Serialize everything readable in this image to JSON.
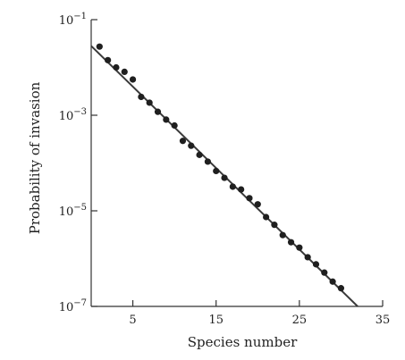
{
  "chart_data": {
    "type": "scatter",
    "title": "",
    "xlabel": "Species number",
    "ylabel": "Probability of invasion",
    "xlim": [
      0,
      35
    ],
    "ylim": [
      1e-07,
      0.1
    ],
    "yscale": "log",
    "grid": false,
    "x_ticks": [
      {
        "value": 5,
        "label": "5"
      },
      {
        "value": 15,
        "label": "15"
      },
      {
        "value": 25,
        "label": "25"
      },
      {
        "value": 35,
        "label": "35"
      }
    ],
    "y_ticks": [
      {
        "value": 0.1,
        "base": "10",
        "exp": "−1"
      },
      {
        "value": 0.001,
        "base": "10",
        "exp": "−3"
      },
      {
        "value": 1e-05,
        "base": "10",
        "exp": "−5"
      },
      {
        "value": 1e-07,
        "base": "10",
        "exp": "−7"
      }
    ],
    "series": [
      {
        "kind": "points",
        "x": [
          1,
          2,
          3,
          4,
          5,
          6,
          7,
          8,
          9,
          10,
          11,
          12,
          13,
          14,
          15,
          16,
          17,
          18,
          19,
          20,
          21,
          22,
          23,
          24,
          25,
          26,
          27,
          28,
          29,
          30
        ],
        "y": [
          0.0273,
          0.0142,
          0.01,
          0.0081,
          0.0056,
          0.00242,
          0.00183,
          0.00118,
          0.00081,
          0.00061,
          0.00029,
          0.00023,
          0.000148,
          0.000107,
          6.8e-05,
          4.9e-05,
          3.2e-05,
          2.8e-05,
          1.84e-05,
          1.37e-05,
          7.4e-06,
          5.1e-06,
          3.1e-06,
          2.2e-06,
          1.7e-06,
          1.07e-06,
          7.6e-07,
          5.1e-07,
          3.3e-07,
          2.4e-07
        ]
      },
      {
        "kind": "fit-line",
        "x": [
          0,
          32
        ],
        "y": [
          0.0282,
          1e-07
        ]
      }
    ]
  }
}
